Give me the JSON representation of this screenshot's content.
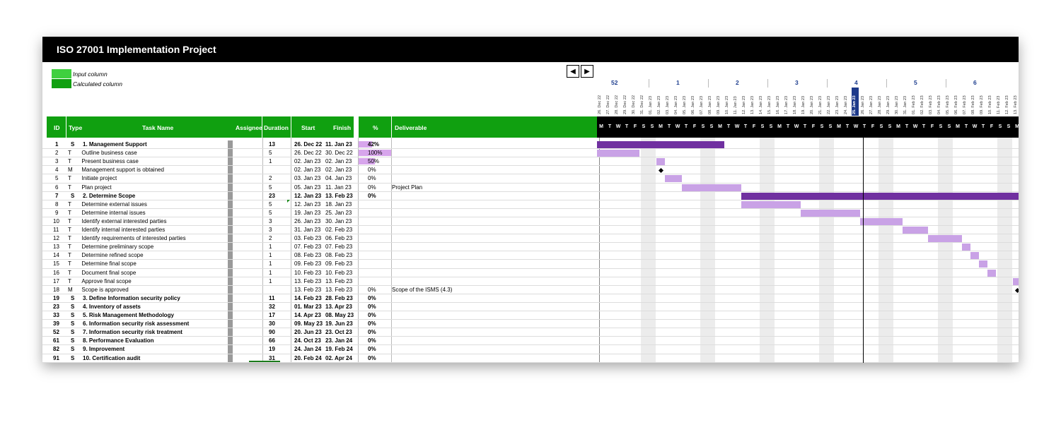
{
  "title": "ISO 27001 Implementation Project",
  "legend": {
    "input": "Input column",
    "calculated": "Calculated column",
    "input_color": "#3fd03f",
    "calculated_color": "#10a010"
  },
  "nav": {
    "prev_icon": "◀",
    "next_icon": "▶"
  },
  "weeks": [
    "52",
    "1",
    "2",
    "3",
    "4",
    "5",
    "6"
  ],
  "dates": [
    "26. Dec 22",
    "27. Dec 22",
    "28. Dec 22",
    "29. Dec 22",
    "30. Dec 22",
    "31. Dec 22",
    "01. Jan 23",
    "02. Jan 23",
    "03. Jan 23",
    "04. Jan 23",
    "05. Jan 23",
    "06. Jan 23",
    "07. Jan 23",
    "08. Jan 23",
    "09. Jan 23",
    "10. Jan 23",
    "11. Jan 23",
    "12. Jan 23",
    "13. Jan 23",
    "14. Jan 23",
    "15. Jan 23",
    "16. Jan 23",
    "17. Jan 23",
    "18. Jan 23",
    "19. Jan 23",
    "20. Jan 23",
    "21. Jan 23",
    "22. Jan 23",
    "23. Jan 23",
    "24. Jan 23",
    "25. Jan 23",
    "26. Jan 23",
    "27. Jan 23",
    "28. Jan 23",
    "29. Jan 23",
    "30. Jan 23",
    "31. Jan 23",
    "01. Feb 23",
    "02. Feb 23",
    "03. Feb 23",
    "04. Feb 23",
    "05. Feb 23",
    "06. Feb 23",
    "07. Feb 23",
    "08. Feb 23",
    "09. Feb 23",
    "10. Feb 23",
    "11. Feb 23",
    "12. Feb 23",
    "13. Feb 23"
  ],
  "today": "25. Jan 23",
  "day_letters": [
    "M",
    "T",
    "W",
    "T",
    "F",
    "S",
    "S"
  ],
  "headers": {
    "id": "ID",
    "type": "Type",
    "task": "Task Name",
    "assignee": "Assignee",
    "duration": "Duration",
    "start": "Start",
    "finish": "Finish",
    "pct": "%",
    "deliverable": "Deliverable"
  },
  "colors": {
    "summary_bar": "#7030a0",
    "task_bar": "#c9a2e6",
    "header_green": "#10a010",
    "today": "#1e3a8a",
    "weekend": "#ececec"
  },
  "rows": [
    {
      "id": "1",
      "type": "S",
      "name": "1. Management Support",
      "duration": "13",
      "start": "26. Dec 22",
      "finish": "11. Jan 23",
      "pct": "42%",
      "pct_value": 0.42,
      "deliverable": "",
      "bold": true,
      "indent": 0,
      "kind": "sum",
      "gstart": 0,
      "gdur": 15
    },
    {
      "id": "2",
      "type": "T",
      "name": "Outline business case",
      "duration": "5",
      "start": "26. Dec 22",
      "finish": "30. Dec 22",
      "pct": "100%",
      "pct_value": 1.0,
      "deliverable": "",
      "bold": false,
      "indent": 1,
      "kind": "task",
      "gstart": 0,
      "gdur": 5
    },
    {
      "id": "3",
      "type": "T",
      "name": "Present business case",
      "duration": "1",
      "start": "02. Jan 23",
      "finish": "02. Jan 23",
      "pct": "50%",
      "pct_value": 0.5,
      "deliverable": "",
      "bold": false,
      "indent": 1,
      "kind": "task",
      "gstart": 7,
      "gdur": 1
    },
    {
      "id": "4",
      "type": "M",
      "name": "Management support is obtained",
      "duration": "",
      "start": "02. Jan 23",
      "finish": "02. Jan 23",
      "pct": "0%",
      "pct_value": 0,
      "deliverable": "",
      "bold": false,
      "indent": 1,
      "kind": "milestone",
      "gstart": 7,
      "gdur": 0
    },
    {
      "id": "5",
      "type": "T",
      "name": "Initiate project",
      "duration": "2",
      "start": "03. Jan 23",
      "finish": "04. Jan 23",
      "pct": "0%",
      "pct_value": 0,
      "deliverable": "",
      "bold": false,
      "indent": 1,
      "kind": "task",
      "gstart": 8,
      "gdur": 2
    },
    {
      "id": "6",
      "type": "T",
      "name": "Plan project",
      "duration": "5",
      "start": "05. Jan 23",
      "finish": "11. Jan 23",
      "pct": "0%",
      "pct_value": 0,
      "deliverable": "Project Plan",
      "bold": false,
      "indent": 1,
      "kind": "task",
      "gstart": 10,
      "gdur": 7
    },
    {
      "id": "7",
      "type": "S",
      "name": "2. Determine Scope",
      "duration": "23",
      "start": "12. Jan 23",
      "finish": "13. Feb 23",
      "pct": "0%",
      "pct_value": 0,
      "deliverable": "",
      "bold": true,
      "indent": 0,
      "kind": "sum",
      "gstart": 17,
      "gdur": 33
    },
    {
      "id": "8",
      "type": "T",
      "name": "Determine external issues",
      "duration": "5",
      "start": "12. Jan 23",
      "finish": "18. Jan 23",
      "pct": "",
      "pct_value": 0,
      "deliverable": "",
      "bold": false,
      "indent": 1,
      "kind": "task",
      "gstart": 17,
      "gdur": 7
    },
    {
      "id": "9",
      "type": "T",
      "name": "Determine internal issues",
      "duration": "5",
      "start": "19. Jan 23",
      "finish": "25. Jan 23",
      "pct": "",
      "pct_value": 0,
      "deliverable": "",
      "bold": false,
      "indent": 1,
      "kind": "task",
      "gstart": 24,
      "gdur": 7
    },
    {
      "id": "10",
      "type": "T",
      "name": "Identify external interested parties",
      "duration": "3",
      "start": "26. Jan 23",
      "finish": "30. Jan 23",
      "pct": "",
      "pct_value": 0,
      "deliverable": "",
      "bold": false,
      "indent": 1,
      "kind": "task",
      "gstart": 31,
      "gdur": 5
    },
    {
      "id": "11",
      "type": "T",
      "name": "Identify internal interested parties",
      "duration": "3",
      "start": "31. Jan 23",
      "finish": "02. Feb 23",
      "pct": "",
      "pct_value": 0,
      "deliverable": "",
      "bold": false,
      "indent": 1,
      "kind": "task",
      "gstart": 36,
      "gdur": 3
    },
    {
      "id": "12",
      "type": "T",
      "name": "Identify requirements of interested parties",
      "duration": "2",
      "start": "03. Feb 23",
      "finish": "06. Feb 23",
      "pct": "",
      "pct_value": 0,
      "deliverable": "",
      "bold": false,
      "indent": 1,
      "kind": "task",
      "gstart": 39,
      "gdur": 4
    },
    {
      "id": "13",
      "type": "T",
      "name": "Determine preliminary scope",
      "duration": "1",
      "start": "07. Feb 23",
      "finish": "07. Feb 23",
      "pct": "",
      "pct_value": 0,
      "deliverable": "",
      "bold": false,
      "indent": 1,
      "kind": "task",
      "gstart": 43,
      "gdur": 1
    },
    {
      "id": "14",
      "type": "T",
      "name": "Determine refined scope",
      "duration": "1",
      "start": "08. Feb 23",
      "finish": "08. Feb 23",
      "pct": "",
      "pct_value": 0,
      "deliverable": "",
      "bold": false,
      "indent": 1,
      "kind": "task",
      "gstart": 44,
      "gdur": 1
    },
    {
      "id": "15",
      "type": "T",
      "name": "Determine final scope",
      "duration": "1",
      "start": "09. Feb 23",
      "finish": "09. Feb 23",
      "pct": "",
      "pct_value": 0,
      "deliverable": "",
      "bold": false,
      "indent": 1,
      "kind": "task",
      "gstart": 45,
      "gdur": 1
    },
    {
      "id": "16",
      "type": "T",
      "name": "Document final scope",
      "duration": "1",
      "start": "10. Feb 23",
      "finish": "10. Feb 23",
      "pct": "",
      "pct_value": 0,
      "deliverable": "",
      "bold": false,
      "indent": 1,
      "kind": "task",
      "gstart": 46,
      "gdur": 1
    },
    {
      "id": "17",
      "type": "T",
      "name": "Approve final scope",
      "duration": "1",
      "start": "13. Feb 23",
      "finish": "13. Feb 23",
      "pct": "",
      "pct_value": 0,
      "deliverable": "",
      "bold": false,
      "indent": 1,
      "kind": "task",
      "gstart": 49,
      "gdur": 1
    },
    {
      "id": "18",
      "type": "M",
      "name": "Scope is approved",
      "duration": "",
      "start": "13. Feb 23",
      "finish": "13. Feb 23",
      "pct": "0%",
      "pct_value": 0,
      "deliverable": "Scope of the ISMS (4.3)",
      "bold": false,
      "indent": 1,
      "kind": "milestone",
      "gstart": 49,
      "gdur": 0
    },
    {
      "id": "19",
      "type": "S",
      "name": "3. Define Information security policy",
      "duration": "11",
      "start": "14. Feb 23",
      "finish": "28. Feb 23",
      "pct": "0%",
      "pct_value": 0,
      "deliverable": "",
      "bold": true,
      "indent": 0,
      "kind": "sum",
      "gstart": 50,
      "gdur": 15
    },
    {
      "id": "23",
      "type": "S",
      "name": "4. Inventory of assets",
      "duration": "32",
      "start": "01. Mar 23",
      "finish": "13. Apr 23",
      "pct": "0%",
      "pct_value": 0,
      "deliverable": "",
      "bold": true,
      "indent": 0,
      "kind": "none",
      "gstart": 0,
      "gdur": 0
    },
    {
      "id": "33",
      "type": "S",
      "name": "5. Risk Management Methodology",
      "duration": "17",
      "start": "14. Apr 23",
      "finish": "08. May 23",
      "pct": "0%",
      "pct_value": 0,
      "deliverable": "",
      "bold": true,
      "indent": 0,
      "kind": "none",
      "gstart": 0,
      "gdur": 0
    },
    {
      "id": "39",
      "type": "S",
      "name": "6. Information security risk assessment",
      "duration": "30",
      "start": "09. May 23",
      "finish": "19. Jun 23",
      "pct": "0%",
      "pct_value": 0,
      "deliverable": "",
      "bold": true,
      "indent": 0,
      "kind": "none",
      "gstart": 0,
      "gdur": 0
    },
    {
      "id": "52",
      "type": "S",
      "name": "7. Information security risk treatment",
      "duration": "90",
      "start": "20. Jun 23",
      "finish": "23. Oct 23",
      "pct": "0%",
      "pct_value": 0,
      "deliverable": "",
      "bold": true,
      "indent": 0,
      "kind": "none",
      "gstart": 0,
      "gdur": 0
    },
    {
      "id": "61",
      "type": "S",
      "name": "8. Performance Evaluation",
      "duration": "66",
      "start": "24. Oct 23",
      "finish": "23. Jan 24",
      "pct": "0%",
      "pct_value": 0,
      "deliverable": "",
      "bold": true,
      "indent": 0,
      "kind": "none",
      "gstart": 0,
      "gdur": 0
    },
    {
      "id": "82",
      "type": "S",
      "name": "9. Improvement",
      "duration": "19",
      "start": "24. Jan 24",
      "finish": "19. Feb 24",
      "pct": "0%",
      "pct_value": 0,
      "deliverable": "",
      "bold": true,
      "indent": 0,
      "kind": "none",
      "gstart": 0,
      "gdur": 0
    },
    {
      "id": "91",
      "type": "S",
      "name": "10. Certification audit",
      "duration": "31",
      "start": "20. Feb 24",
      "finish": "02. Apr 24",
      "pct": "0%",
      "pct_value": 0,
      "deliverable": "",
      "bold": true,
      "indent": 0,
      "kind": "none",
      "gstart": 0,
      "gdur": 0
    }
  ]
}
